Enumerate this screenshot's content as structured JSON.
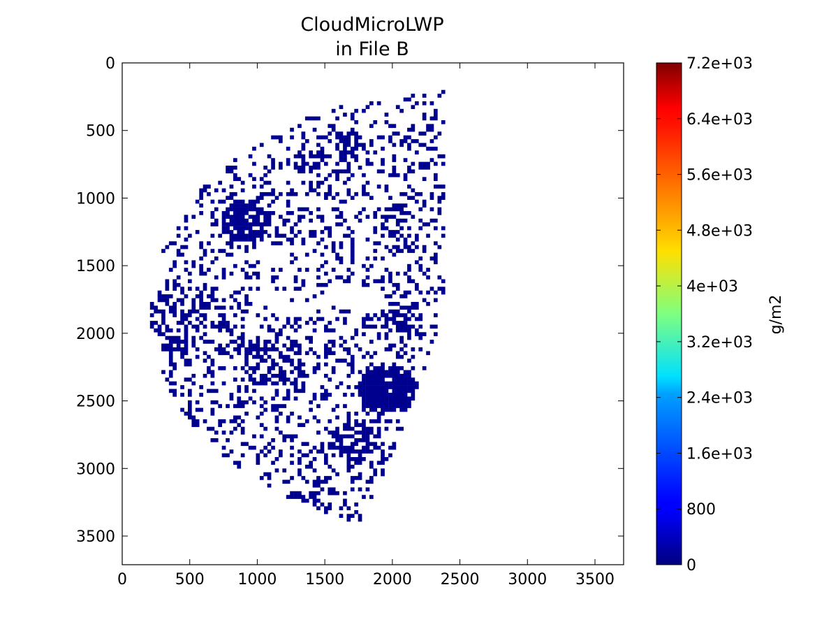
{
  "chart_data": {
    "type": "heatmap",
    "title": "CloudMicroLWP",
    "subtitle": "in File B",
    "xlabel": "",
    "ylabel": "",
    "xlim": [
      0,
      3712
    ],
    "ylim": [
      3712,
      0
    ],
    "x_ticks": [
      0,
      500,
      1000,
      1500,
      2000,
      2500,
      3000,
      3500
    ],
    "y_ticks": [
      0,
      500,
      1000,
      1500,
      2000,
      2500,
      3000,
      3500
    ],
    "x_tick_labels": [
      "0",
      "500",
      "1000",
      "1500",
      "2000",
      "2500",
      "3000",
      "3500"
    ],
    "y_tick_labels": [
      "0",
      "500",
      "1000",
      "1500",
      "2000",
      "2500",
      "3000",
      "3500"
    ],
    "grid": false,
    "colormap": "jet",
    "colorbar": {
      "label": "g/m2",
      "range": [
        0,
        7200
      ],
      "ticks": [
        0,
        800,
        1600,
        2400,
        3200,
        4000,
        4800,
        5600,
        6400,
        7200
      ],
      "tick_labels": [
        "0",
        "800",
        "1.6e+03",
        "2.4e+03",
        "3.2e+03",
        "4e+03",
        "4.8e+03",
        "5.6e+03",
        "6.4e+03",
        "7.2e+03"
      ],
      "colors": [
        "#00007f",
        "#0000ff",
        "#007fff",
        "#00ffff",
        "#7fff7f",
        "#ffff00",
        "#ff7f00",
        "#ff0000",
        "#7f0000"
      ]
    },
    "description_of_field": "Cloud liquid water path over Earth disk; visible values near 0 g/m2 (dark blue) scattered over western part of disk, white where no data",
    "field_color": "#00008f"
  }
}
